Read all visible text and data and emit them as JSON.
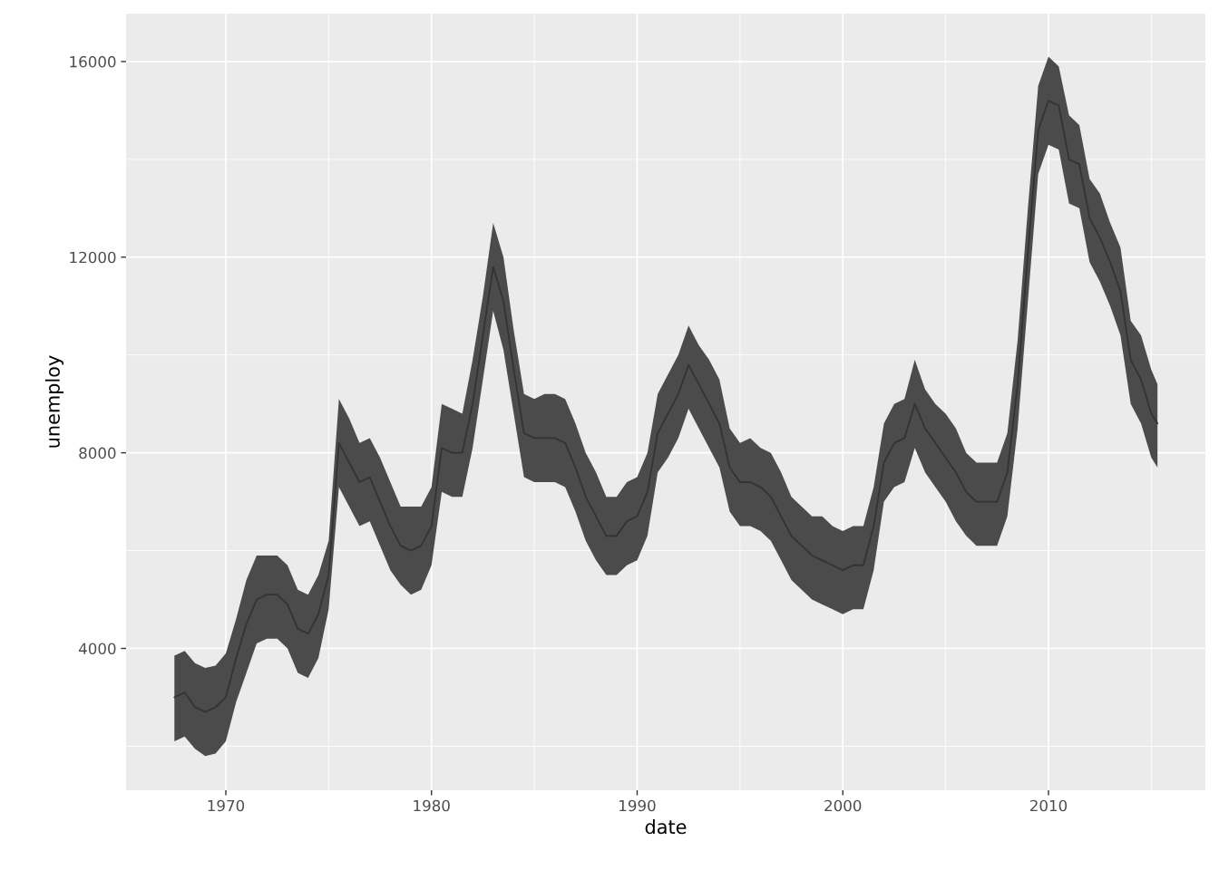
{
  "chart_data": {
    "type": "line",
    "xlabel": "date",
    "ylabel": "unemploy",
    "xlim": [
      1965.15,
      2017.63
    ],
    "ylim": [
      1100,
      16980
    ],
    "xticks": [
      1970,
      1980,
      1990,
      2000,
      2010
    ],
    "yticks": [
      4000,
      8000,
      12000,
      16000
    ],
    "grid": true,
    "x": [
      1967.5,
      1968.0,
      1968.5,
      1969.0,
      1969.5,
      1970.0,
      1970.5,
      1971.0,
      1971.5,
      1972.0,
      1972.5,
      1973.0,
      1973.5,
      1974.0,
      1974.5,
      1975.0,
      1975.5,
      1976.0,
      1976.5,
      1977.0,
      1977.5,
      1978.0,
      1978.5,
      1979.0,
      1979.5,
      1980.0,
      1980.5,
      1981.0,
      1981.5,
      1982.0,
      1982.5,
      1983.0,
      1983.5,
      1984.0,
      1984.5,
      1985.0,
      1985.5,
      1986.0,
      1986.5,
      1987.0,
      1987.5,
      1988.0,
      1988.5,
      1989.0,
      1989.5,
      1990.0,
      1990.5,
      1991.0,
      1991.5,
      1992.0,
      1992.5,
      1993.0,
      1993.5,
      1994.0,
      1994.5,
      1995.0,
      1995.5,
      1996.0,
      1996.5,
      1997.0,
      1997.5,
      1998.0,
      1998.5,
      1999.0,
      1999.5,
      2000.0,
      2000.5,
      2001.0,
      2001.5,
      2002.0,
      2002.5,
      2003.0,
      2003.5,
      2004.0,
      2004.5,
      2005.0,
      2005.5,
      2006.0,
      2006.5,
      2007.0,
      2007.5,
      2008.0,
      2008.5,
      2009.0,
      2009.5,
      2010.0,
      2010.5,
      2011.0,
      2011.5,
      2012.0,
      2012.5,
      2013.0,
      2013.5,
      2014.0,
      2014.5,
      2015.0,
      2015.3
    ],
    "series": [
      {
        "color": "#333333",
        "upper": [
          3850,
          3950,
          3700,
          3600,
          3650,
          3900,
          4600,
          5400,
          5900,
          5900,
          5900,
          5700,
          5200,
          5100,
          5500,
          6200,
          9100,
          8700,
          8200,
          8300,
          7900,
          7400,
          6900,
          6900,
          6900,
          7300,
          9000,
          8900,
          8800,
          9900,
          11200,
          12700,
          12000,
          10500,
          9200,
          9100,
          9200,
          9200,
          9100,
          8600,
          8000,
          7600,
          7100,
          7100,
          7400,
          7500,
          8000,
          9200,
          9600,
          10000,
          10600,
          10200,
          9900,
          9500,
          8500,
          8200,
          8300,
          8100,
          8000,
          7600,
          7100,
          6900,
          6700,
          6700,
          6500,
          6400,
          6500,
          6500,
          7300,
          8600,
          9000,
          9100,
          9900,
          9300,
          9000,
          8800,
          8500,
          8000,
          7800,
          7800,
          7800,
          8400,
          10300,
          13000,
          15500,
          16100,
          15900,
          14900,
          14700,
          13600,
          13300,
          12700,
          12200,
          10700,
          10400,
          9700,
          9400
        ],
        "lower": [
          2100,
          2200,
          1950,
          1800,
          1850,
          2100,
          2900,
          3500,
          4100,
          4200,
          4200,
          4000,
          3500,
          3400,
          3800,
          4800,
          7300,
          6900,
          6500,
          6600,
          6100,
          5600,
          5300,
          5100,
          5200,
          5700,
          7200,
          7100,
          7100,
          8100,
          9500,
          10900,
          10100,
          8800,
          7500,
          7400,
          7400,
          7400,
          7300,
          6800,
          6200,
          5800,
          5500,
          5500,
          5700,
          5800,
          6300,
          7600,
          7900,
          8300,
          8900,
          8500,
          8100,
          7700,
          6800,
          6500,
          6500,
          6400,
          6200,
          5800,
          5400,
          5200,
          5000,
          4900,
          4800,
          4700,
          4800,
          4800,
          5600,
          7000,
          7300,
          7400,
          8100,
          7600,
          7300,
          7000,
          6600,
          6300,
          6100,
          6100,
          6100,
          6700,
          8500,
          11100,
          13700,
          14300,
          14200,
          13100,
          13000,
          11900,
          11500,
          11000,
          10400,
          9000,
          8600,
          7900,
          7700
        ],
        "values": [
          3000,
          3100,
          2800,
          2700,
          2800,
          3000,
          3800,
          4500,
          5000,
          5100,
          5100,
          4900,
          4400,
          4300,
          4700,
          5500,
          8200,
          7800,
          7400,
          7500,
          7000,
          6500,
          6100,
          6000,
          6100,
          6500,
          8100,
          8000,
          8000,
          9000,
          10400,
          11800,
          11100,
          9700,
          8400,
          8300,
          8300,
          8300,
          8200,
          7700,
          7100,
          6700,
          6300,
          6300,
          6600,
          6700,
          7200,
          8400,
          8800,
          9200,
          9800,
          9400,
          9000,
          8600,
          7700,
          7400,
          7400,
          7300,
          7100,
          6700,
          6300,
          6100,
          5900,
          5800,
          5700,
          5600,
          5700,
          5700,
          6500,
          7800,
          8200,
          8300,
          9000,
          8500,
          8200,
          7900,
          7600,
          7200,
          7000,
          7000,
          7000,
          7600,
          9400,
          12100,
          14600,
          15200,
          15100,
          14000,
          13900,
          12800,
          12400,
          11900,
          11300,
          9900,
          9500,
          8800,
          8600
        ]
      }
    ]
  }
}
